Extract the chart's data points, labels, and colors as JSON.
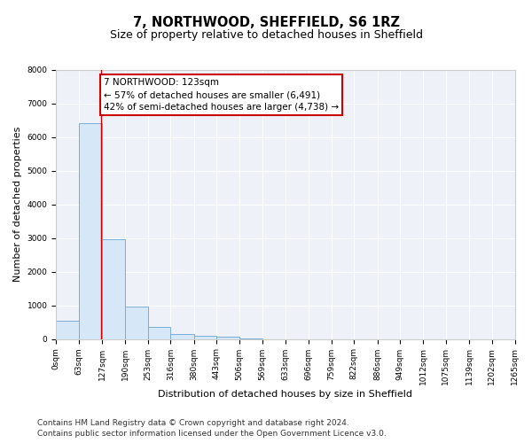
{
  "title": "7, NORTHWOOD, SHEFFIELD, S6 1RZ",
  "subtitle": "Size of property relative to detached houses in Sheffield",
  "xlabel": "Distribution of detached houses by size in Sheffield",
  "ylabel": "Number of detached properties",
  "bin_edges": [
    0,
    63,
    127,
    190,
    253,
    316,
    380,
    443,
    506,
    569,
    633,
    696,
    759,
    822,
    886,
    949,
    1012,
    1075,
    1139,
    1202,
    1265
  ],
  "bar_heights": [
    550,
    6400,
    2950,
    975,
    350,
    135,
    90,
    70,
    5,
    0,
    0,
    0,
    0,
    0,
    0,
    0,
    0,
    0,
    0,
    0
  ],
  "bar_color": "#d6e8f7",
  "bar_edge_color": "#7aadd4",
  "property_line_x": 123,
  "property_line_color": "#cc0000",
  "annotation_text": "7 NORTHWOOD: 123sqm\n← 57% of detached houses are smaller (6,491)\n42% of semi-detached houses are larger (4,738) →",
  "annotation_box_color": "#cc0000",
  "ylim": [
    0,
    8000
  ],
  "yticks": [
    0,
    1000,
    2000,
    3000,
    4000,
    5000,
    6000,
    7000,
    8000
  ],
  "bg_color": "#eef2f8",
  "grid_color": "#ffffff",
  "footer_line1": "Contains HM Land Registry data © Crown copyright and database right 2024.",
  "footer_line2": "Contains public sector information licensed under the Open Government Licence v3.0.",
  "title_fontsize": 10.5,
  "subtitle_fontsize": 9,
  "axis_label_fontsize": 8,
  "tick_fontsize": 6.5,
  "annotation_fontsize": 7.5,
  "footer_fontsize": 6.5
}
